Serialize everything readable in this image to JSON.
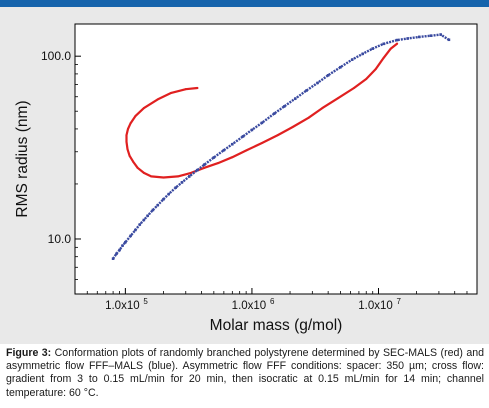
{
  "caption": {
    "label": "Figure 3:",
    "text": "Conformation plots of randomly branched polystyrene determined by SEC-MALS (red) and asymmetric flow FFF–MALS (blue). Asymmetric flow FFF conditions: spacer: 350 µm; cross flow: gradient from 3 to 0.15 mL/min for 20 min, then isocratic at 0.15 mL/min for 14 min; channel temperature: 60 °C."
  },
  "colors": {
    "panel": "#e9e9e9",
    "top_bar": "#1664ac",
    "red": "#e02020",
    "blue": "#3a4aa0"
  },
  "chart_data": {
    "type": "scatter",
    "xlabel": "Molar mass (g/mol)",
    "ylabel": "RMS radius (nm)",
    "xscale": "log",
    "yscale": "log",
    "xlim": [
      40000,
      60000000
    ],
    "ylim": [
      5,
      150
    ],
    "x_ticks": [
      100000,
      1000000,
      10000000
    ],
    "x_tick_labels": [
      "1.0x10",
      "1.0x10",
      "1.0x10"
    ],
    "x_tick_exponents": [
      "5",
      "6",
      "7"
    ],
    "y_ticks": [
      10,
      100
    ],
    "y_tick_labels": [
      "10.0",
      "100.0"
    ],
    "grid": false,
    "legend": false,
    "series": [
      {
        "color": "#e02020",
        "style": "line",
        "x": [
          370000,
          300000,
          230000,
          180000,
          140000,
          120000,
          110000,
          105000,
          102000,
          102000,
          104000,
          108000,
          115000,
          125000,
          140000,
          160000,
          200000,
          260000,
          330000,
          420000,
          540000,
          700000,
          900000,
          1200000,
          1600000,
          2100000,
          2800000,
          3600000,
          4800000,
          6400000,
          8000000,
          9500000,
          11000000,
          12500000,
          14000000
        ],
        "y": [
          67,
          66,
          63,
          58,
          52,
          47,
          43,
          40,
          37,
          34,
          31,
          28.5,
          26.5,
          24.5,
          23,
          22,
          21.7,
          22,
          23,
          24.5,
          26,
          28,
          30.5,
          33.5,
          37,
          41,
          46,
          52,
          59,
          67,
          75,
          85,
          98,
          110,
          117
        ]
      },
      {
        "color": "#3a4aa0",
        "style": "points",
        "x": [
          80000,
          85000,
          90000,
          95000,
          100000,
          110000,
          120000,
          130000,
          140000,
          150000,
          165000,
          180000,
          200000,
          220000,
          250000,
          280000,
          320000,
          370000,
          420000,
          500000,
          600000,
          700000,
          850000,
          1000000,
          1200000,
          1500000,
          1800000,
          2200000,
          2700000,
          3300000,
          4000000,
          5000000,
          6200000,
          7500000,
          9000000,
          11000000,
          14000000,
          17000000,
          21000000,
          26000000,
          31000000,
          36000000
        ],
        "y": [
          7.8,
          8.3,
          8.7,
          9.2,
          9.6,
          10.4,
          11.2,
          12,
          12.7,
          13.4,
          14.4,
          15.3,
          16.5,
          17.6,
          19.1,
          20.4,
          22,
          23.8,
          25.5,
          27.9,
          30.6,
          33,
          36.4,
          39.5,
          43.2,
          48.5,
          53.1,
          58.6,
          64.9,
          71.4,
          78.6,
          87,
          95.8,
          103,
          110,
          116.9,
          122.5,
          125,
          127.5,
          129.5,
          131.3,
          123
        ]
      }
    ]
  }
}
